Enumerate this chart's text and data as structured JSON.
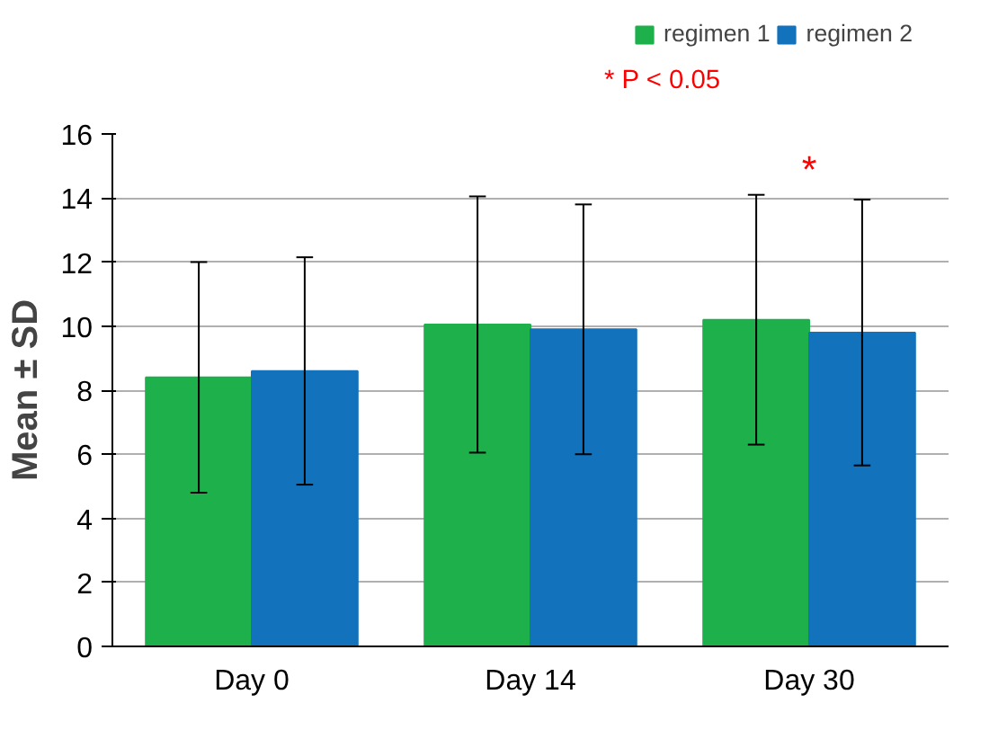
{
  "chart_data": {
    "type": "bar",
    "ylabel": "Mean ± SD",
    "categories": [
      "Day 0",
      "Day 14",
      "Day 30"
    ],
    "series": [
      {
        "name": "regimen 1",
        "color": "#1db04b",
        "values": [
          8.4,
          10.05,
          10.2
        ],
        "errors": [
          3.6,
          4.0,
          3.9
        ]
      },
      {
        "name": "regimen 2",
        "color": "#1272bc",
        "values": [
          8.6,
          9.9,
          9.8
        ],
        "errors": [
          3.55,
          3.9,
          4.15
        ]
      }
    ],
    "ylim": [
      0,
      16
    ],
    "yticks": [
      0,
      2,
      4,
      6,
      8,
      10,
      12,
      14,
      16
    ],
    "grid": "y",
    "legend": "top",
    "annotations": [
      "* P < 0.05",
      "*"
    ]
  }
}
